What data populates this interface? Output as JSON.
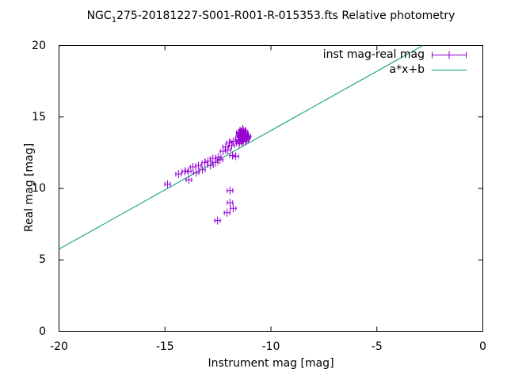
{
  "title": {
    "prefix": "NGC",
    "subscript": "1",
    "rest": "275-20181227-S001-R001-R-015353.fts Relative photometry"
  },
  "axes": {
    "x_label": "Instrument mag [mag]",
    "y_label": "Real mag [mag]",
    "x_ticks": [
      "-20",
      "-15",
      "-10",
      "-5",
      "0"
    ],
    "y_ticks": [
      "0",
      "5",
      "10",
      "15",
      "20"
    ]
  },
  "legend": {
    "entries": [
      {
        "label": "inst mag-real mag",
        "type": "errorbar",
        "color": "#9400d3"
      },
      {
        "label": "a*x+b",
        "type": "line",
        "color": "#009e73"
      }
    ]
  },
  "colors": {
    "points": "#9400d3",
    "fit_line": "#009e73",
    "border": "#000000",
    "background": "#ffffff"
  },
  "chart_data": {
    "type": "scatter",
    "title": "NGC_1275-20181227-S001-R001-R-015353.fts Relative photometry",
    "xlabel": "Instrument mag [mag]",
    "ylabel": "Real mag [mag]",
    "xlim": [
      -20,
      0
    ],
    "ylim": [
      0,
      20
    ],
    "x_tick_values": [
      -20,
      -15,
      -10,
      -5,
      0
    ],
    "y_tick_values": [
      0,
      5,
      10,
      15,
      20
    ],
    "grid": false,
    "legend_position": "top-right",
    "series": [
      {
        "name": "inst mag-real mag",
        "type": "xerrorbar-scatter",
        "color": "#9400d3",
        "x_error": 0.12,
        "points": [
          [
            -14.88,
            10.3
          ],
          [
            -14.36,
            11.0
          ],
          [
            -14.06,
            11.2
          ],
          [
            -13.9,
            11.2
          ],
          [
            -13.87,
            10.6
          ],
          [
            -13.68,
            11.5
          ],
          [
            -13.53,
            11.1
          ],
          [
            -13.42,
            11.6
          ],
          [
            -13.23,
            11.3
          ],
          [
            -13.12,
            11.8
          ],
          [
            -12.97,
            11.9
          ],
          [
            -12.85,
            11.6
          ],
          [
            -12.74,
            12.1
          ],
          [
            -12.63,
            11.8
          ],
          [
            -12.48,
            12.2
          ],
          [
            -12.4,
            12.0
          ],
          [
            -12.26,
            12.6
          ],
          [
            -12.14,
            12.9
          ],
          [
            -12.03,
            12.7
          ],
          [
            -11.96,
            13.2
          ],
          [
            -11.85,
            13.0
          ],
          [
            -11.78,
            13.3
          ],
          [
            -11.81,
            12.3
          ],
          [
            -11.66,
            12.25
          ],
          [
            -11.55,
            13.4
          ],
          [
            -11.45,
            13.7
          ],
          [
            -11.35,
            13.55
          ],
          [
            -11.25,
            13.8
          ],
          [
            -11.5,
            13.9
          ],
          [
            -11.3,
            13.3
          ],
          [
            -11.2,
            13.6
          ],
          [
            -11.4,
            14.0
          ],
          [
            -11.15,
            13.45
          ],
          [
            -11.48,
            13.25
          ],
          [
            -11.22,
            13.95
          ],
          [
            -11.38,
            13.5
          ],
          [
            -11.28,
            13.65
          ],
          [
            -11.52,
            13.6
          ],
          [
            -11.18,
            13.75
          ],
          [
            -11.42,
            13.35
          ],
          [
            -11.32,
            13.85
          ],
          [
            -11.12,
            13.55
          ],
          [
            -11.46,
            13.8
          ],
          [
            -11.26,
            13.5
          ],
          [
            -11.36,
            13.7
          ],
          [
            -11.3,
            14.05
          ],
          [
            -11.5,
            13.12
          ],
          [
            -11.2,
            13.3
          ],
          [
            -11.33,
            14.15
          ],
          [
            -11.08,
            13.65
          ],
          [
            -11.93,
            9.85
          ],
          [
            -11.93,
            9.0
          ],
          [
            -11.78,
            8.6
          ],
          [
            -12.07,
            8.3
          ],
          [
            -12.52,
            7.75
          ]
        ]
      },
      {
        "name": "a*x+b",
        "type": "line-fit",
        "color": "#009e73",
        "a": 0.83,
        "b": 22.35,
        "x_range": [
          -20,
          -2.831
        ]
      }
    ]
  }
}
